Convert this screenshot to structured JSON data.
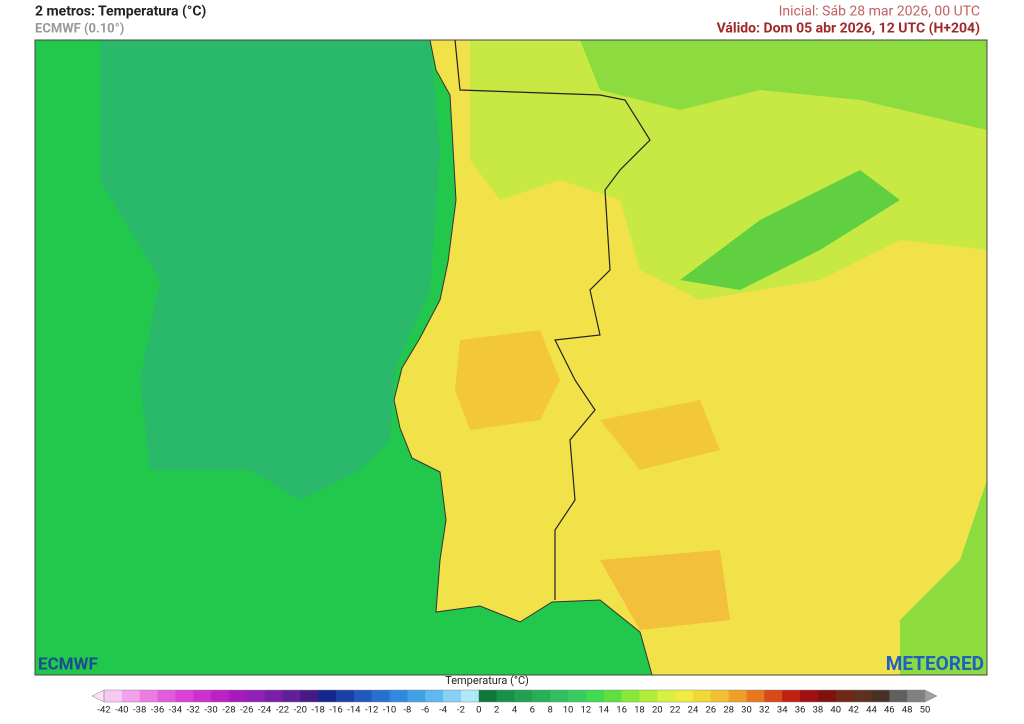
{
  "header": {
    "title": "2 metros: Temperatura (°C)",
    "subtitle": "ECMWF (0.10°)",
    "initial": "Inicial: Sáb 28 mar 2026, 00 UTC",
    "valid": "Válido: Dom 05 abr 2026, 12 UTC (H+204)"
  },
  "logos": {
    "left": "ECMWF",
    "right": "METEORED"
  },
  "legend": {
    "title": "Temperatura (°C)",
    "ticks": [
      -42,
      -40,
      -38,
      -36,
      -34,
      -32,
      -30,
      -28,
      -26,
      -24,
      -22,
      -20,
      -18,
      -16,
      -14,
      -12,
      -10,
      -8,
      -6,
      -4,
      -2,
      0,
      2,
      4,
      6,
      8,
      10,
      12,
      14,
      16,
      18,
      20,
      22,
      24,
      26,
      28,
      30,
      32,
      34,
      36,
      38,
      40,
      42,
      44,
      46,
      48,
      50
    ],
    "colors": [
      "#f7c8f3",
      "#f2a2ec",
      "#ec7ce4",
      "#e45adc",
      "#dc40d6",
      "#cc30ce",
      "#bc22c6",
      "#a61abe",
      "#9020b6",
      "#7a20a8",
      "#622098",
      "#461a84",
      "#14288e",
      "#1a40a8",
      "#2058c0",
      "#2870d0",
      "#3088e0",
      "#40a0e8",
      "#60b8f0",
      "#88d0f5",
      "#b0e8f8",
      "#107838",
      "#189048",
      "#20a050",
      "#28b058",
      "#30c060",
      "#38cc60",
      "#40dc50",
      "#60e040",
      "#88e838",
      "#b0ec38",
      "#d8f040",
      "#f0ec40",
      "#f0d838",
      "#f0c030",
      "#f0a028",
      "#e87820",
      "#d84818",
      "#c02010",
      "#a01010",
      "#801010",
      "#702818",
      "#603020",
      "#483028",
      "#606060",
      "#808080"
    ],
    "under_color": "#fbe0f8",
    "over_color": "#a0a0a0"
  }
}
